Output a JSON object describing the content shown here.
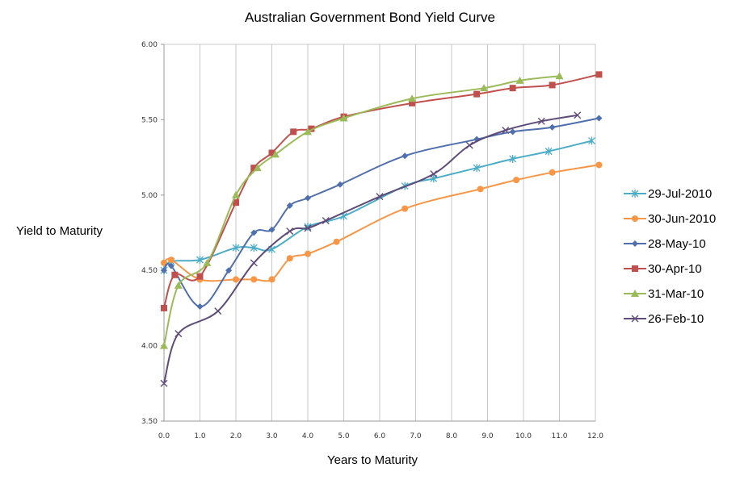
{
  "chart_data": {
    "type": "line",
    "title": "Australian Government Bond Yield Curve",
    "xlabel": "Years to Maturity",
    "ylabel": "Yield to Maturity",
    "xlim": [
      0,
      12
    ],
    "ylim": [
      3.5,
      6.0
    ],
    "x_ticks": [
      "0.0",
      "1.0",
      "2.0",
      "3.0",
      "4.0",
      "5.0",
      "6.0",
      "7.0",
      "8.0",
      "9.0",
      "10.0",
      "11.0",
      "12.0"
    ],
    "y_ticks": [
      "3.50",
      "4.00",
      "4.50",
      "5.00",
      "5.50",
      "6.00"
    ],
    "grid": "vertical",
    "legend": "right",
    "series": [
      {
        "name": "29-Jul-2010",
        "color": "#4bacc6",
        "marker": "asterisk",
        "x": [
          0.0,
          0.2,
          1.0,
          2.0,
          2.5,
          3.0,
          4.0,
          5.0,
          6.7,
          7.5,
          8.7,
          9.7,
          10.7,
          11.9
        ],
        "y": [
          4.5,
          4.56,
          4.57,
          4.65,
          4.65,
          4.64,
          4.79,
          4.86,
          5.06,
          5.11,
          5.18,
          5.24,
          5.29,
          5.36
        ]
      },
      {
        "name": "30-Jun-2010",
        "color": "#f79646",
        "marker": "circle",
        "x": [
          0.0,
          0.2,
          1.0,
          2.0,
          2.5,
          3.0,
          3.5,
          4.0,
          4.8,
          6.7,
          8.8,
          9.8,
          10.8,
          12.1
        ],
        "y": [
          4.55,
          4.57,
          4.44,
          4.44,
          4.44,
          4.44,
          4.58,
          4.61,
          4.69,
          4.91,
          5.04,
          5.1,
          5.15,
          5.2
        ]
      },
      {
        "name": "28-May-10",
        "color": "#4f6fad",
        "marker": "diamond",
        "x": [
          0.0,
          0.2,
          1.0,
          1.8,
          2.5,
          3.0,
          3.5,
          4.0,
          4.9,
          6.7,
          8.7,
          9.7,
          10.8,
          12.1
        ],
        "y": [
          4.5,
          4.53,
          4.26,
          4.5,
          4.75,
          4.77,
          4.93,
          4.98,
          5.07,
          5.26,
          5.37,
          5.42,
          5.45,
          5.51
        ]
      },
      {
        "name": "30-Apr-10",
        "color": "#c0504d",
        "marker": "square",
        "x": [
          0.0,
          0.3,
          1.0,
          2.0,
          2.5,
          3.0,
          3.6,
          4.1,
          5.0,
          6.9,
          8.7,
          9.7,
          10.8,
          12.1
        ],
        "y": [
          4.25,
          4.47,
          4.46,
          4.95,
          5.18,
          5.28,
          5.42,
          5.44,
          5.52,
          5.61,
          5.67,
          5.71,
          5.73,
          5.8
        ]
      },
      {
        "name": "31-Mar-10",
        "color": "#9bbb59",
        "marker": "triangle",
        "x": [
          0.0,
          0.4,
          1.2,
          2.0,
          2.6,
          3.1,
          4.0,
          5.0,
          6.9,
          8.9,
          9.9,
          11.0
        ],
        "y": [
          4.0,
          4.4,
          4.55,
          5.0,
          5.18,
          5.27,
          5.42,
          5.51,
          5.64,
          5.71,
          5.76,
          5.79
        ]
      },
      {
        "name": "26-Feb-10",
        "color": "#5e4b7a",
        "marker": "cross",
        "x": [
          0.0,
          0.4,
          1.5,
          2.5,
          3.5,
          4.0,
          4.5,
          6.0,
          7.5,
          8.5,
          9.5,
          10.5,
          11.5
        ],
        "y": [
          3.75,
          4.08,
          4.23,
          4.55,
          4.76,
          4.78,
          4.83,
          4.99,
          5.14,
          5.33,
          5.43,
          5.49,
          5.53
        ]
      }
    ]
  }
}
